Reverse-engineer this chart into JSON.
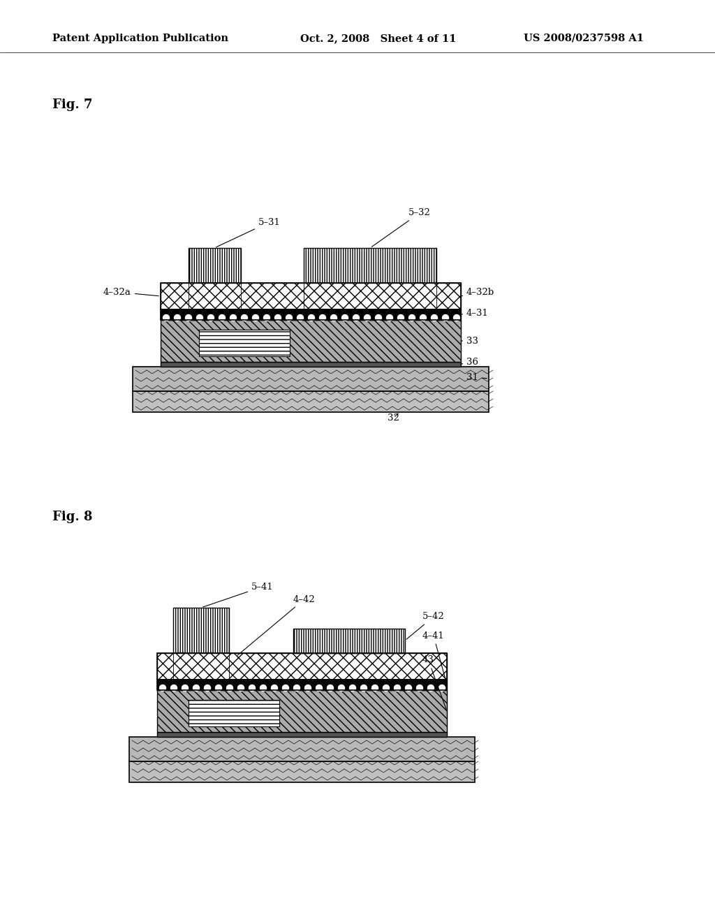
{
  "background_color": "#ffffff",
  "header_left": "Patent Application Publication",
  "header_mid": "Oct. 2, 2008   Sheet 4 of 11",
  "header_right": "US 2008/0237598 A1",
  "fig7_label": "Fig. 7",
  "fig8_label": "Fig. 8"
}
